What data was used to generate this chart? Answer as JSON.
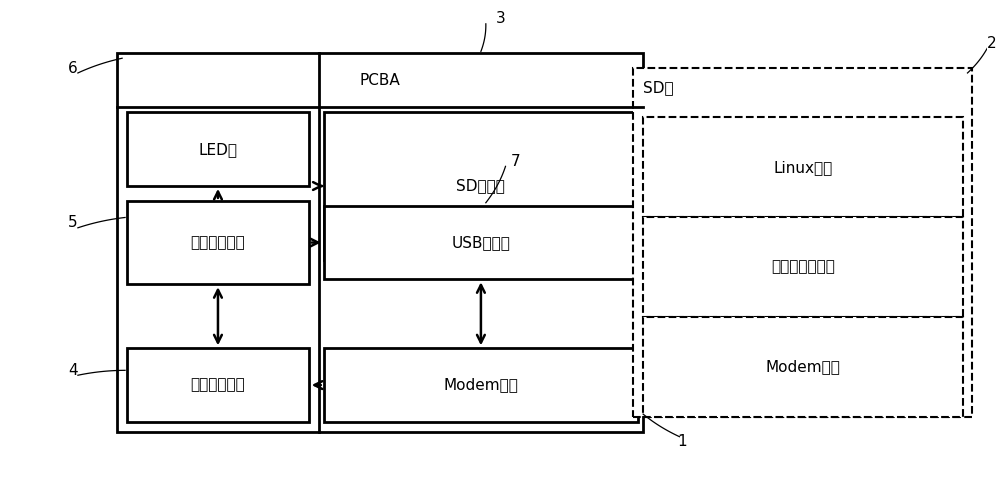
{
  "bg_color": "#ffffff",
  "fig_width": 10.0,
  "fig_height": 4.9,
  "dpi": 100,
  "labels": {
    "pcba": "PCBA",
    "led": "LED灯",
    "auto_test": "自动测试模块",
    "auto_match": "自动匹配模块",
    "sd_ctrl": "SD控制器",
    "usb_ctrl": "USB控制器",
    "modem_module": "Modem模块",
    "sd_card": "SD卡",
    "linux": "Linux内核",
    "min_root": "最小根文件系统",
    "modem_driver": "Modem驱动"
  },
  "numbers": {
    "n1": "1",
    "n2": "2",
    "n3": "3",
    "n4": "4",
    "n5": "5",
    "n6": "6",
    "n7": "7"
  },
  "lw_thick": 2.0,
  "lw_thin": 1.5,
  "lw_dash": 1.5,
  "fontsize_main": 11,
  "fontsize_label": 11
}
